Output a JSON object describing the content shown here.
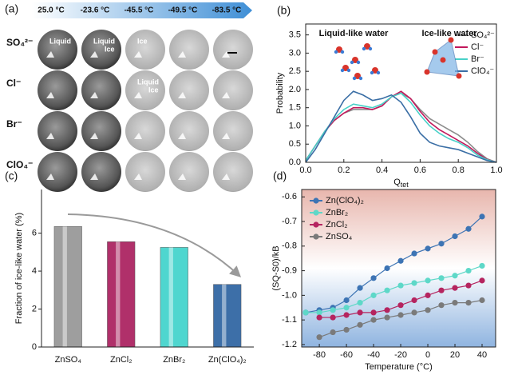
{
  "panel_a": {
    "panel_label": "(a)",
    "temperatures": [
      "25.0 °C",
      "-23.6 °C",
      "-45.5 °C",
      "-49.5 °C",
      "-83.5 °C"
    ],
    "ions": [
      "SO₄²⁻",
      "Cl⁻",
      "Br⁻",
      "ClO₄⁻"
    ],
    "images": [
      [
        [
          "Liquid"
        ],
        [
          "Liquid",
          "Ice"
        ],
        [
          "Ice"
        ],
        [],
        []
      ],
      [
        [],
        [],
        [
          "Liquid",
          "Ice"
        ],
        [],
        []
      ],
      [
        [],
        [],
        [],
        [],
        []
      ],
      [
        [],
        [],
        [],
        [],
        []
      ]
    ]
  },
  "chart_data": [
    {
      "type": "line",
      "panel_label": "(b)",
      "xlabel": "Q",
      "xlabel_sub": "tet",
      "ylabel": "Probability",
      "annotations": [
        "Liquid-like water",
        "Ice-like water"
      ],
      "x": [
        0,
        0.05,
        0.1,
        0.15,
        0.2,
        0.25,
        0.3,
        0.35,
        0.4,
        0.45,
        0.5,
        0.55,
        0.6,
        0.65,
        0.7,
        0.75,
        0.8,
        0.85,
        0.9,
        0.95,
        1.0
      ],
      "xlim": [
        0,
        1
      ],
      "xticks": [
        {
          "value": 0,
          "label": "0.0"
        },
        0.2,
        0.4,
        0.6,
        0.8,
        {
          "value": 1,
          "label": "1.0"
        }
      ],
      "ylim": [
        0,
        3.8
      ],
      "yticks": [
        {
          "value": 0,
          "label": "0.0"
        },
        0.5,
        {
          "value": 1,
          "label": "1.0"
        },
        1.5,
        {
          "value": 2,
          "label": "2.0"
        },
        2.5,
        {
          "value": 3,
          "label": "3.0"
        },
        3.5
      ],
      "legend": "upper right",
      "series": [
        {
          "name": "SO₄²⁻",
          "color": "#8c8c8c",
          "values": [
            0.05,
            0.45,
            0.85,
            1.15,
            1.35,
            1.45,
            1.45,
            1.45,
            1.55,
            1.8,
            1.9,
            1.75,
            1.45,
            1.2,
            1.05,
            0.9,
            0.75,
            0.55,
            0.3,
            0.1,
            0
          ]
        },
        {
          "name": "Cl⁻",
          "color": "#c2185b",
          "values": [
            0.05,
            0.45,
            0.85,
            1.15,
            1.35,
            1.5,
            1.5,
            1.45,
            1.55,
            1.8,
            1.95,
            1.75,
            1.4,
            1.1,
            0.9,
            0.75,
            0.6,
            0.45,
            0.25,
            0.08,
            0
          ]
        },
        {
          "name": "Br⁻",
          "color": "#48d1c8",
          "values": [
            0.05,
            0.45,
            0.85,
            1.2,
            1.45,
            1.6,
            1.55,
            1.5,
            1.6,
            1.8,
            1.9,
            1.65,
            1.3,
            1.0,
            0.8,
            0.65,
            0.55,
            0.4,
            0.2,
            0.07,
            0
          ]
        },
        {
          "name": "ClO₄⁻",
          "color": "#3a6ea5",
          "values": [
            0,
            0.35,
            0.8,
            1.25,
            1.7,
            1.95,
            1.85,
            1.7,
            1.75,
            1.85,
            1.65,
            1.25,
            0.8,
            0.55,
            0.45,
            0.4,
            0.35,
            0.25,
            0.15,
            0.05,
            0
          ]
        }
      ]
    },
    {
      "type": "bar",
      "panel_label": "(c)",
      "ylabel": "Fraction of ice-like water (%)",
      "categories": [
        "ZnSO₄",
        "ZnCl₂",
        "ZnBr₂",
        "Zn(ClO₄)₂"
      ],
      "values": [
        6.35,
        5.55,
        5.25,
        3.3
      ],
      "colors": [
        "#9e9e9e",
        "#b0306a",
        "#4fd6cf",
        "#3d6fa8"
      ],
      "ylim": [
        0,
        8.3
      ],
      "yticks": [
        0,
        2,
        4,
        6
      ]
    },
    {
      "type": "line",
      "panel_label": "(d)",
      "xlabel": "Temperature (°C)",
      "ylabel": "(SQ-S0)/kB",
      "markers": true,
      "xlim": [
        -93,
        50
      ],
      "xticks": [
        -80,
        -60,
        -40,
        -20,
        0,
        20,
        40
      ],
      "ylim": [
        -1.21,
        -0.57
      ],
      "yticks": [
        -0.6,
        -0.7,
        -0.8,
        -0.9,
        {
          "value": -1,
          "label": "-1.0"
        },
        -1.1,
        -1.2
      ],
      "legend": "upper left",
      "series": [
        {
          "name": "Zn(ClO₄)₂",
          "color": "#3d74b4",
          "x": [
            -90,
            -80,
            -70,
            -60,
            -50,
            -40,
            -30,
            -20,
            -10,
            0,
            10,
            20,
            30,
            40
          ],
          "values": [
            -1.07,
            -1.06,
            -1.05,
            -1.02,
            -0.97,
            -0.93,
            -0.89,
            -0.86,
            -0.83,
            -0.81,
            -0.79,
            -0.76,
            -0.73,
            -0.68
          ]
        },
        {
          "name": "ZnBr₂",
          "color": "#5ed8c8",
          "x": [
            -90,
            -80,
            -70,
            -60,
            -50,
            -40,
            -30,
            -20,
            -10,
            0,
            10,
            20,
            30,
            40
          ],
          "values": [
            -1.07,
            -1.07,
            -1.06,
            -1.05,
            -1.03,
            -1.0,
            -0.98,
            -0.96,
            -0.95,
            -0.94,
            -0.93,
            -0.92,
            -0.9,
            -0.88
          ]
        },
        {
          "name": "ZnCl₂",
          "color": "#b5245f",
          "x": [
            -80,
            -70,
            -60,
            -50,
            -40,
            -30,
            -20,
            -10,
            0,
            10,
            20,
            30,
            40
          ],
          "values": [
            -1.09,
            -1.09,
            -1.08,
            -1.07,
            -1.07,
            -1.06,
            -1.04,
            -1.02,
            -1.0,
            -0.98,
            -0.97,
            -0.96,
            -0.94
          ]
        },
        {
          "name": "ZnSO₄",
          "color": "#7a7a7a",
          "x": [
            -80,
            -70,
            -60,
            -50,
            -40,
            -30,
            -20,
            -10,
            0,
            10,
            20,
            30,
            40
          ],
          "values": [
            -1.17,
            -1.15,
            -1.14,
            -1.12,
            -1.1,
            -1.09,
            -1.08,
            -1.07,
            -1.06,
            -1.04,
            -1.03,
            -1.03,
            -1.02
          ]
        }
      ]
    }
  ]
}
